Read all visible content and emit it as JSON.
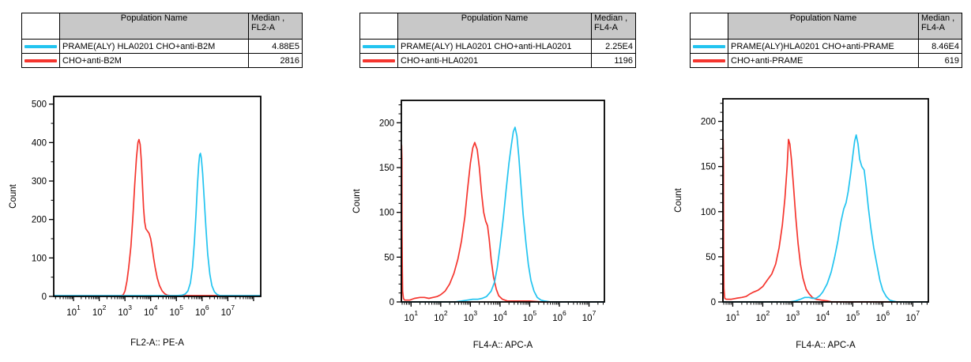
{
  "colors": {
    "cyan": "#22c4f0",
    "red": "#f5352e",
    "axis": "#000000",
    "table_header_bg": "#c8c8c8",
    "background": "#ffffff"
  },
  "panels": [
    {
      "table": {
        "header": {
          "population": "Population Name",
          "median_line1": "Median ,",
          "median_line2": "FL2-A"
        },
        "rows": [
          {
            "color_key": "cyan",
            "name": "PRAME(ALY) HLA0201 CHO+anti-B2M",
            "median": "4.88E5"
          },
          {
            "color_key": "red",
            "name": "CHO+anti-B2M",
            "median": "2816"
          }
        ]
      }
    },
    {
      "table": {
        "header": {
          "population": "Population Name",
          "median_line1": "Median ,",
          "median_line2": "FL4-A"
        },
        "rows": [
          {
            "color_key": "cyan",
            "name": "PRAME(ALY) HLA0201 CHO+anti-HLA0201",
            "median": "2.25E4"
          },
          {
            "color_key": "red",
            "name": "CHO+anti-HLA0201",
            "median": "1196"
          }
        ]
      }
    },
    {
      "table": {
        "header": {
          "population": "Population Name",
          "median_line1": "Median ,",
          "median_line2": "FL4-A"
        },
        "rows": [
          {
            "color_key": "cyan",
            "name": "PRAME(ALY)HLA0201 CHO+anti-PRAME",
            "median": "8.46E4"
          },
          {
            "color_key": "red",
            "name": "CHO+anti-PRAME",
            "median": "619"
          }
        ]
      }
    }
  ],
  "chart_data": [
    {
      "type": "line",
      "title": "",
      "xlabel": "FL2-A:: PE-A",
      "ylabel": "Count",
      "xscale": "log",
      "xlim": [
        1.7,
        190000000
      ],
      "ylim": [
        0,
        520
      ],
      "yticks_major": [
        0,
        100,
        200,
        300,
        400,
        500
      ],
      "ytick_minor_step": 50,
      "xticks_labeled_exponents": [
        1,
        2,
        3,
        4,
        5,
        6,
        7
      ],
      "grid": false,
      "legend_position": "table-above",
      "series": [
        {
          "name": "CHO+anti-B2M",
          "color_key": "red",
          "points": [
            [
              1.7,
              2
            ],
            [
              500,
              2
            ],
            [
              700,
              2
            ],
            [
              850,
              4
            ],
            [
              1000,
              14
            ],
            [
              1200,
              40
            ],
            [
              1400,
              75
            ],
            [
              1700,
              130
            ],
            [
              2000,
              200
            ],
            [
              2400,
              290
            ],
            [
              2800,
              360
            ],
            [
              3200,
              400
            ],
            [
              3500,
              408
            ],
            [
              3900,
              395
            ],
            [
              4300,
              355
            ],
            [
              4800,
              290
            ],
            [
              5300,
              230
            ],
            [
              5800,
              195
            ],
            [
              6500,
              176
            ],
            [
              7500,
              170
            ],
            [
              8700,
              164
            ],
            [
              10000,
              150
            ],
            [
              11500,
              125
            ],
            [
              13000,
              100
            ],
            [
              15000,
              75
            ],
            [
              18000,
              48
            ],
            [
              22000,
              28
            ],
            [
              28000,
              14
            ],
            [
              35000,
              7
            ],
            [
              45000,
              3
            ],
            [
              60000,
              2
            ],
            [
              190000000,
              2
            ]
          ]
        },
        {
          "name": "PRAME(ALY) HLA0201 CHO+anti-B2M",
          "color_key": "cyan",
          "points": [
            [
              1.7,
              2
            ],
            [
              100000,
              2
            ],
            [
              160000,
              3
            ],
            [
              220000,
              6
            ],
            [
              280000,
              14
            ],
            [
              350000,
              35
            ],
            [
              420000,
              75
            ],
            [
              500000,
              140
            ],
            [
              580000,
              215
            ],
            [
              660000,
              290
            ],
            [
              740000,
              345
            ],
            [
              800000,
              368
            ],
            [
              860000,
              372
            ],
            [
              930000,
              360
            ],
            [
              1050000,
              320
            ],
            [
              1200000,
              255
            ],
            [
              1400000,
              180
            ],
            [
              1650000,
              110
            ],
            [
              2000000,
              58
            ],
            [
              2400000,
              28
            ],
            [
              3000000,
              12
            ],
            [
              3800000,
              5
            ],
            [
              5000000,
              2
            ],
            [
              190000000,
              2
            ]
          ]
        }
      ]
    },
    {
      "type": "line",
      "title": "",
      "xlabel": "FL4-A:: APC-A",
      "ylabel": "Count",
      "xscale": "log",
      "xlim": [
        4.7,
        33000000
      ],
      "ylim": [
        0,
        225
      ],
      "yticks_major": [
        0,
        50,
        100,
        150,
        200
      ],
      "ytick_minor_step": 10,
      "xticks_labeled_exponents": [
        1,
        2,
        3,
        4,
        5,
        6,
        7
      ],
      "grid": false,
      "legend_position": "table-above",
      "series": [
        {
          "name": "CHO+anti-HLA0201",
          "color_key": "red",
          "points": [
            [
              4.7,
              1
            ],
            [
              4.75,
              90
            ],
            [
              4.8,
              175
            ],
            [
              4.9,
              160
            ],
            [
              4.95,
              88
            ],
            [
              5.05,
              40
            ],
            [
              5.2,
              12
            ],
            [
              5.5,
              4
            ],
            [
              6,
              2
            ],
            [
              9,
              2
            ],
            [
              13,
              4
            ],
            [
              20,
              5
            ],
            [
              28,
              5
            ],
            [
              40,
              4
            ],
            [
              55,
              5
            ],
            [
              75,
              6
            ],
            [
              100,
              8
            ],
            [
              140,
              12
            ],
            [
              200,
              20
            ],
            [
              280,
              32
            ],
            [
              380,
              48
            ],
            [
              500,
              68
            ],
            [
              650,
              95
            ],
            [
              800,
              125
            ],
            [
              1000,
              155
            ],
            [
              1200,
              172
            ],
            [
              1400,
              178
            ],
            [
              1700,
              170
            ],
            [
              2000,
              150
            ],
            [
              2400,
              120
            ],
            [
              2800,
              100
            ],
            [
              3300,
              90
            ],
            [
              3800,
              85
            ],
            [
              4300,
              70
            ],
            [
              5000,
              48
            ],
            [
              6000,
              28
            ],
            [
              7500,
              14
            ],
            [
              9000,
              7
            ],
            [
              12000,
              3
            ],
            [
              18000,
              1
            ],
            [
              100000,
              1
            ],
            [
              250000,
              0
            ],
            [
              33000000,
              0
            ]
          ]
        },
        {
          "name": "PRAME(ALY) HLA0201 CHO+anti-HLA0201",
          "color_key": "cyan",
          "points": [
            [
              4.7,
              0
            ],
            [
              300,
              0
            ],
            [
              500,
              1
            ],
            [
              800,
              2
            ],
            [
              1200,
              3
            ],
            [
              1800,
              3
            ],
            [
              2500,
              4
            ],
            [
              3500,
              6
            ],
            [
              5000,
              12
            ],
            [
              6500,
              22
            ],
            [
              8000,
              38
            ],
            [
              10000,
              62
            ],
            [
              13000,
              95
            ],
            [
              16000,
              125
            ],
            [
              20000,
              155
            ],
            [
              24000,
              175
            ],
            [
              28000,
              190
            ],
            [
              32000,
              195
            ],
            [
              37000,
              185
            ],
            [
              43000,
              162
            ],
            [
              50000,
              132
            ],
            [
              60000,
              98
            ],
            [
              75000,
              65
            ],
            [
              90000,
              42
            ],
            [
              110000,
              24
            ],
            [
              140000,
              12
            ],
            [
              180000,
              5
            ],
            [
              240000,
              2
            ],
            [
              320000,
              1
            ],
            [
              500000,
              0
            ],
            [
              33000000,
              0
            ]
          ]
        }
      ]
    },
    {
      "type": "line",
      "title": "",
      "xlabel": "FL4-A:: APC-A",
      "ylabel": "Count",
      "xscale": "log",
      "xlim": [
        4.7,
        33000000
      ],
      "ylim": [
        0,
        225
      ],
      "yticks_major": [
        0,
        50,
        100,
        150,
        200
      ],
      "ytick_minor_step": 10,
      "xticks_labeled_exponents": [
        1,
        2,
        3,
        4,
        5,
        6,
        7
      ],
      "grid": false,
      "legend_position": "table-above",
      "series": [
        {
          "name": "CHO+anti-PRAME",
          "color_key": "red",
          "points": [
            [
              4.7,
              1
            ],
            [
              4.75,
              97
            ],
            [
              4.8,
              180
            ],
            [
              4.9,
              150
            ],
            [
              4.95,
              60
            ],
            [
              5.1,
              15
            ],
            [
              5.4,
              4
            ],
            [
              6,
              3
            ],
            [
              9,
              3
            ],
            [
              13,
              4
            ],
            [
              20,
              5
            ],
            [
              28,
              6
            ],
            [
              38,
              9
            ],
            [
              50,
              11
            ],
            [
              70,
              13
            ],
            [
              100,
              17
            ],
            [
              140,
              24
            ],
            [
              200,
              31
            ],
            [
              270,
              42
            ],
            [
              350,
              60
            ],
            [
              450,
              85
            ],
            [
              550,
              115
            ],
            [
              650,
              150
            ],
            [
              720,
              180
            ],
            [
              800,
              175
            ],
            [
              900,
              158
            ],
            [
              1050,
              130
            ],
            [
              1250,
              95
            ],
            [
              1500,
              65
            ],
            [
              1800,
              42
            ],
            [
              2200,
              26
            ],
            [
              2800,
              14
            ],
            [
              3500,
              9
            ],
            [
              4500,
              5
            ],
            [
              6000,
              3
            ],
            [
              9000,
              2
            ],
            [
              15000,
              1
            ],
            [
              20000,
              0
            ],
            [
              33000000,
              0
            ]
          ]
        },
        {
          "name": "PRAME(ALY)HLA0201 CHO+anti-PRAME",
          "color_key": "cyan",
          "points": [
            [
              4.7,
              0
            ],
            [
              800,
              0
            ],
            [
              1200,
              1
            ],
            [
              1800,
              3
            ],
            [
              2500,
              5
            ],
            [
              3500,
              5
            ],
            [
              4500,
              4
            ],
            [
              6000,
              4
            ],
            [
              8000,
              7
            ],
            [
              10000,
              11
            ],
            [
              14000,
              20
            ],
            [
              19000,
              33
            ],
            [
              25000,
              50
            ],
            [
              32000,
              68
            ],
            [
              40000,
              88
            ],
            [
              50000,
              103
            ],
            [
              60000,
              110
            ],
            [
              70000,
              122
            ],
            [
              85000,
              142
            ],
            [
              100000,
              162
            ],
            [
              115000,
              178
            ],
            [
              130000,
              185
            ],
            [
              150000,
              175
            ],
            [
              170000,
              158
            ],
            [
              200000,
              150
            ],
            [
              240000,
              146
            ],
            [
              280000,
              128
            ],
            [
              330000,
              105
            ],
            [
              400000,
              82
            ],
            [
              500000,
              60
            ],
            [
              650000,
              40
            ],
            [
              800000,
              24
            ],
            [
              1000000,
              13
            ],
            [
              1300000,
              6
            ],
            [
              1700000,
              2
            ],
            [
              2200000,
              1
            ],
            [
              3000000,
              0
            ],
            [
              33000000,
              0
            ]
          ]
        }
      ]
    }
  ]
}
